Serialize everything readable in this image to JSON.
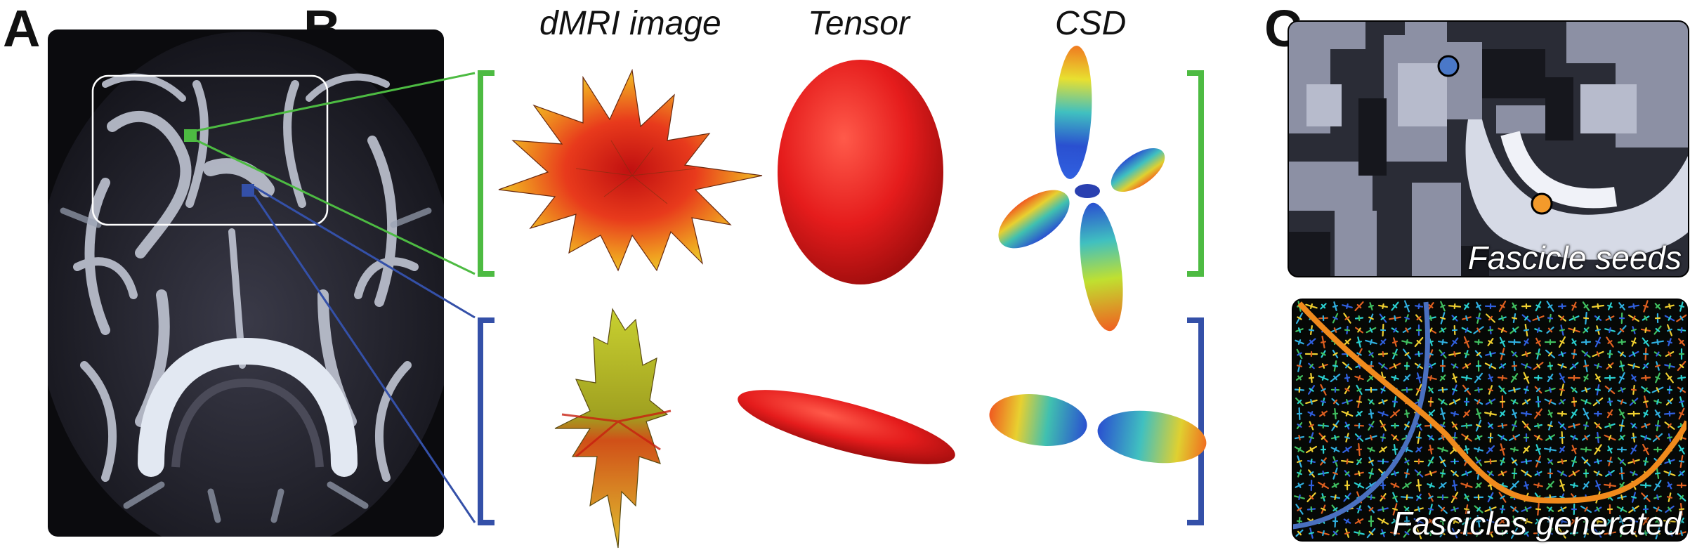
{
  "panels": {
    "a": {
      "letter": "A"
    },
    "b": {
      "letter": "B",
      "columns": [
        "dMRI image",
        "Tensor",
        "CSD"
      ]
    },
    "c": {
      "letter": "C",
      "seeds_label": "Fascicle seeds",
      "fascicles_label": "Fascicles generated"
    }
  },
  "colors": {
    "green_voxel": "#4dbb42",
    "blue_voxel": "#3450a8",
    "seed_blue": "#4a78c8",
    "seed_orange": "#f39a2b",
    "tract_blue": "#4a70c0",
    "tract_orange": "#f08a1c",
    "tensor_red": "#e51c1c"
  }
}
